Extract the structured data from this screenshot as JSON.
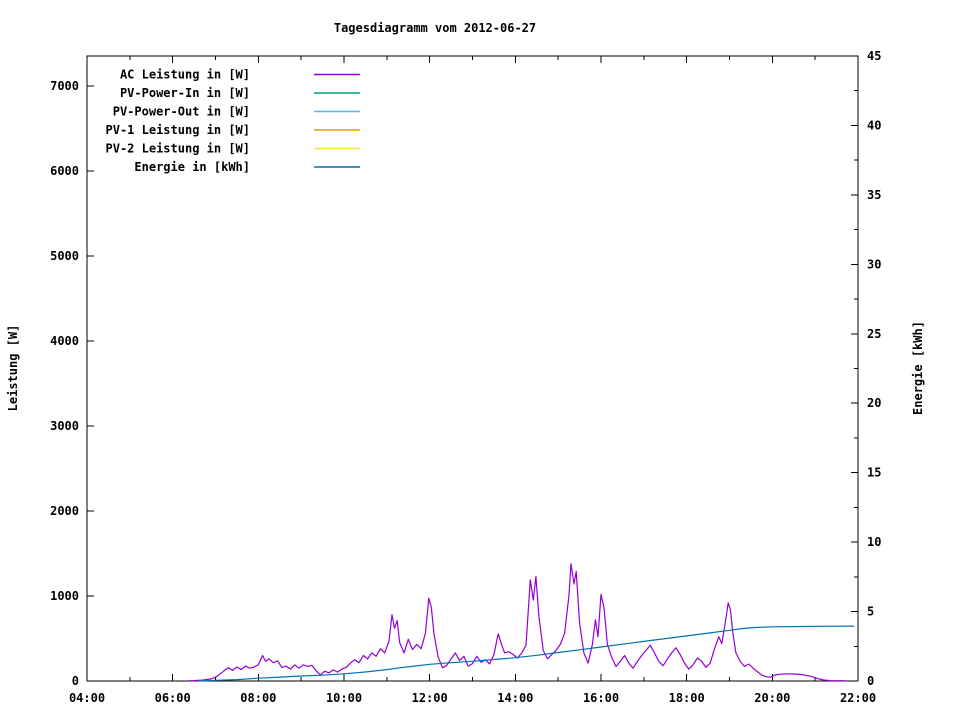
{
  "chart_data": {
    "type": "line",
    "title": "Tagesdiagramm vom 2012-06-27",
    "ylabel_left": "Leistung [W]",
    "ylabel_right": "Energie [kWh]",
    "background": "#ffffff",
    "border_color": "#000000",
    "legend_position": "top-left-inside",
    "x_axis": {
      "unit": "time",
      "start_hour": 4,
      "end_hour": 22,
      "major_ticks": [
        {
          "h": 4,
          "label": "04:00"
        },
        {
          "h": 6,
          "label": "06:00"
        },
        {
          "h": 8,
          "label": "08:00"
        },
        {
          "h": 10,
          "label": "10:00"
        },
        {
          "h": 12,
          "label": "12:00"
        },
        {
          "h": 14,
          "label": "14:00"
        },
        {
          "h": 16,
          "label": "16:00"
        },
        {
          "h": 18,
          "label": "18:00"
        },
        {
          "h": 20,
          "label": "20:00"
        },
        {
          "h": 22,
          "label": "22:00"
        }
      ],
      "minor_tick_hours": [
        5,
        7,
        9,
        11,
        13,
        15,
        17,
        19,
        21
      ]
    },
    "y_left_axis": {
      "min": 0,
      "max": 7350,
      "ticks": [
        {
          "v": 0,
          "label": "0"
        },
        {
          "v": 1000,
          "label": "1000"
        },
        {
          "v": 2000,
          "label": "2000"
        },
        {
          "v": 3000,
          "label": "3000"
        },
        {
          "v": 4000,
          "label": "4000"
        },
        {
          "v": 5000,
          "label": "5000"
        },
        {
          "v": 6000,
          "label": "6000"
        },
        {
          "v": 7000,
          "label": "7000"
        }
      ]
    },
    "y_right_axis": {
      "min": 0,
      "max": 45,
      "ticks": [
        {
          "v": 0,
          "label": "0"
        },
        {
          "v": 5,
          "label": "5"
        },
        {
          "v": 10,
          "label": "10"
        },
        {
          "v": 15,
          "label": "15"
        },
        {
          "v": 20,
          "label": "20"
        },
        {
          "v": 25,
          "label": "25"
        },
        {
          "v": 30,
          "label": "30"
        },
        {
          "v": 35,
          "label": "35"
        },
        {
          "v": 40,
          "label": "40"
        },
        {
          "v": 45,
          "label": "45"
        }
      ],
      "minor_tick_values": [
        2.5,
        7.5,
        12.5,
        17.5,
        22.5,
        27.5,
        32.5,
        37.5,
        42.5
      ]
    },
    "series": [
      {
        "name": "AC Leistung in [W]",
        "axis": "left",
        "color": "#9400d3",
        "points": [
          [
            6.35,
            2
          ],
          [
            6.5,
            5
          ],
          [
            6.7,
            10
          ],
          [
            6.9,
            25
          ],
          [
            7.0,
            45
          ],
          [
            7.1,
            80
          ],
          [
            7.2,
            120
          ],
          [
            7.3,
            155
          ],
          [
            7.4,
            125
          ],
          [
            7.5,
            165
          ],
          [
            7.6,
            135
          ],
          [
            7.7,
            175
          ],
          [
            7.8,
            150
          ],
          [
            7.9,
            165
          ],
          [
            8.0,
            190
          ],
          [
            8.1,
            300
          ],
          [
            8.17,
            230
          ],
          [
            8.25,
            260
          ],
          [
            8.35,
            215
          ],
          [
            8.45,
            235
          ],
          [
            8.55,
            160
          ],
          [
            8.65,
            175
          ],
          [
            8.75,
            140
          ],
          [
            8.85,
            190
          ],
          [
            8.95,
            150
          ],
          [
            9.05,
            190
          ],
          [
            9.15,
            170
          ],
          [
            9.25,
            185
          ],
          [
            9.35,
            120
          ],
          [
            9.45,
            70
          ],
          [
            9.55,
            115
          ],
          [
            9.65,
            95
          ],
          [
            9.75,
            130
          ],
          [
            9.85,
            105
          ],
          [
            9.95,
            140
          ],
          [
            10.05,
            160
          ],
          [
            10.15,
            210
          ],
          [
            10.25,
            250
          ],
          [
            10.35,
            215
          ],
          [
            10.45,
            300
          ],
          [
            10.55,
            260
          ],
          [
            10.65,
            330
          ],
          [
            10.75,
            290
          ],
          [
            10.85,
            380
          ],
          [
            10.95,
            330
          ],
          [
            11.05,
            470
          ],
          [
            11.12,
            780
          ],
          [
            11.18,
            620
          ],
          [
            11.24,
            710
          ],
          [
            11.3,
            450
          ],
          [
            11.4,
            330
          ],
          [
            11.5,
            490
          ],
          [
            11.6,
            370
          ],
          [
            11.7,
            430
          ],
          [
            11.8,
            380
          ],
          [
            11.9,
            560
          ],
          [
            11.98,
            975
          ],
          [
            12.04,
            860
          ],
          [
            12.1,
            560
          ],
          [
            12.2,
            280
          ],
          [
            12.3,
            155
          ],
          [
            12.4,
            185
          ],
          [
            12.5,
            260
          ],
          [
            12.6,
            330
          ],
          [
            12.7,
            240
          ],
          [
            12.8,
            290
          ],
          [
            12.9,
            175
          ],
          [
            13.0,
            205
          ],
          [
            13.1,
            290
          ],
          [
            13.2,
            220
          ],
          [
            13.3,
            250
          ],
          [
            13.4,
            200
          ],
          [
            13.5,
            310
          ],
          [
            13.6,
            555
          ],
          [
            13.68,
            430
          ],
          [
            13.75,
            330
          ],
          [
            13.85,
            345
          ],
          [
            13.95,
            310
          ],
          [
            14.05,
            270
          ],
          [
            14.15,
            330
          ],
          [
            14.25,
            420
          ],
          [
            14.35,
            1190
          ],
          [
            14.42,
            950
          ],
          [
            14.48,
            1230
          ],
          [
            14.55,
            760
          ],
          [
            14.65,
            360
          ],
          [
            14.75,
            260
          ],
          [
            14.85,
            310
          ],
          [
            14.95,
            360
          ],
          [
            15.05,
            430
          ],
          [
            15.15,
            560
          ],
          [
            15.25,
            1000
          ],
          [
            15.3,
            1380
          ],
          [
            15.37,
            1140
          ],
          [
            15.42,
            1290
          ],
          [
            15.5,
            680
          ],
          [
            15.6,
            330
          ],
          [
            15.7,
            210
          ],
          [
            15.8,
            430
          ],
          [
            15.87,
            720
          ],
          [
            15.93,
            520
          ],
          [
            16.0,
            1020
          ],
          [
            16.07,
            860
          ],
          [
            16.15,
            430
          ],
          [
            16.25,
            280
          ],
          [
            16.35,
            170
          ],
          [
            16.45,
            230
          ],
          [
            16.55,
            300
          ],
          [
            16.65,
            210
          ],
          [
            16.75,
            150
          ],
          [
            16.85,
            230
          ],
          [
            16.95,
            300
          ],
          [
            17.05,
            360
          ],
          [
            17.15,
            420
          ],
          [
            17.25,
            330
          ],
          [
            17.35,
            230
          ],
          [
            17.45,
            180
          ],
          [
            17.55,
            260
          ],
          [
            17.65,
            330
          ],
          [
            17.75,
            390
          ],
          [
            17.85,
            310
          ],
          [
            17.95,
            210
          ],
          [
            18.05,
            140
          ],
          [
            18.15,
            190
          ],
          [
            18.25,
            270
          ],
          [
            18.35,
            230
          ],
          [
            18.45,
            160
          ],
          [
            18.55,
            210
          ],
          [
            18.65,
            380
          ],
          [
            18.75,
            520
          ],
          [
            18.82,
            440
          ],
          [
            18.9,
            680
          ],
          [
            18.97,
            920
          ],
          [
            19.02,
            840
          ],
          [
            19.08,
            560
          ],
          [
            19.15,
            330
          ],
          [
            19.25,
            230
          ],
          [
            19.35,
            170
          ],
          [
            19.45,
            200
          ],
          [
            19.55,
            150
          ],
          [
            19.65,
            110
          ],
          [
            19.75,
            70
          ],
          [
            19.85,
            50
          ],
          [
            19.95,
            45
          ],
          [
            20.1,
            75
          ],
          [
            20.3,
            85
          ],
          [
            20.5,
            82
          ],
          [
            20.7,
            75
          ],
          [
            20.9,
            55
          ],
          [
            21.05,
            30
          ],
          [
            21.2,
            12
          ],
          [
            21.35,
            5
          ],
          [
            21.55,
            4
          ],
          [
            21.7,
            3
          ]
        ]
      },
      {
        "name": "PV-Power-In in [W]",
        "axis": "left",
        "color": "#009e73",
        "points": []
      },
      {
        "name": "PV-Power-Out in [W]",
        "axis": "left",
        "color": "#56b4e9",
        "points": []
      },
      {
        "name": "PV-1 Leistung in [W]",
        "axis": "left",
        "color": "#e69f00",
        "points": []
      },
      {
        "name": "PV-2 Leistung in [W]",
        "axis": "left",
        "color": "#f0e442",
        "points": []
      },
      {
        "name": "Energie in [kWh]",
        "axis": "right",
        "color": "#0072b2",
        "points": [
          [
            6.6,
            0.0
          ],
          [
            7.0,
            0.05
          ],
          [
            7.5,
            0.1
          ],
          [
            8.0,
            0.2
          ],
          [
            8.5,
            0.28
          ],
          [
            9.0,
            0.36
          ],
          [
            9.5,
            0.42
          ],
          [
            10.0,
            0.52
          ],
          [
            10.5,
            0.65
          ],
          [
            11.0,
            0.82
          ],
          [
            11.3,
            0.95
          ],
          [
            11.6,
            1.05
          ],
          [
            12.0,
            1.2
          ],
          [
            12.5,
            1.32
          ],
          [
            13.0,
            1.42
          ],
          [
            13.5,
            1.55
          ],
          [
            14.0,
            1.68
          ],
          [
            14.5,
            1.85
          ],
          [
            15.0,
            2.05
          ],
          [
            15.5,
            2.25
          ],
          [
            16.0,
            2.45
          ],
          [
            16.5,
            2.65
          ],
          [
            17.0,
            2.85
          ],
          [
            17.5,
            3.05
          ],
          [
            18.0,
            3.25
          ],
          [
            18.5,
            3.45
          ],
          [
            19.0,
            3.65
          ],
          [
            19.3,
            3.78
          ],
          [
            19.6,
            3.85
          ],
          [
            20.0,
            3.9
          ],
          [
            20.5,
            3.92
          ],
          [
            21.0,
            3.94
          ],
          [
            21.9,
            3.95
          ]
        ]
      }
    ]
  }
}
